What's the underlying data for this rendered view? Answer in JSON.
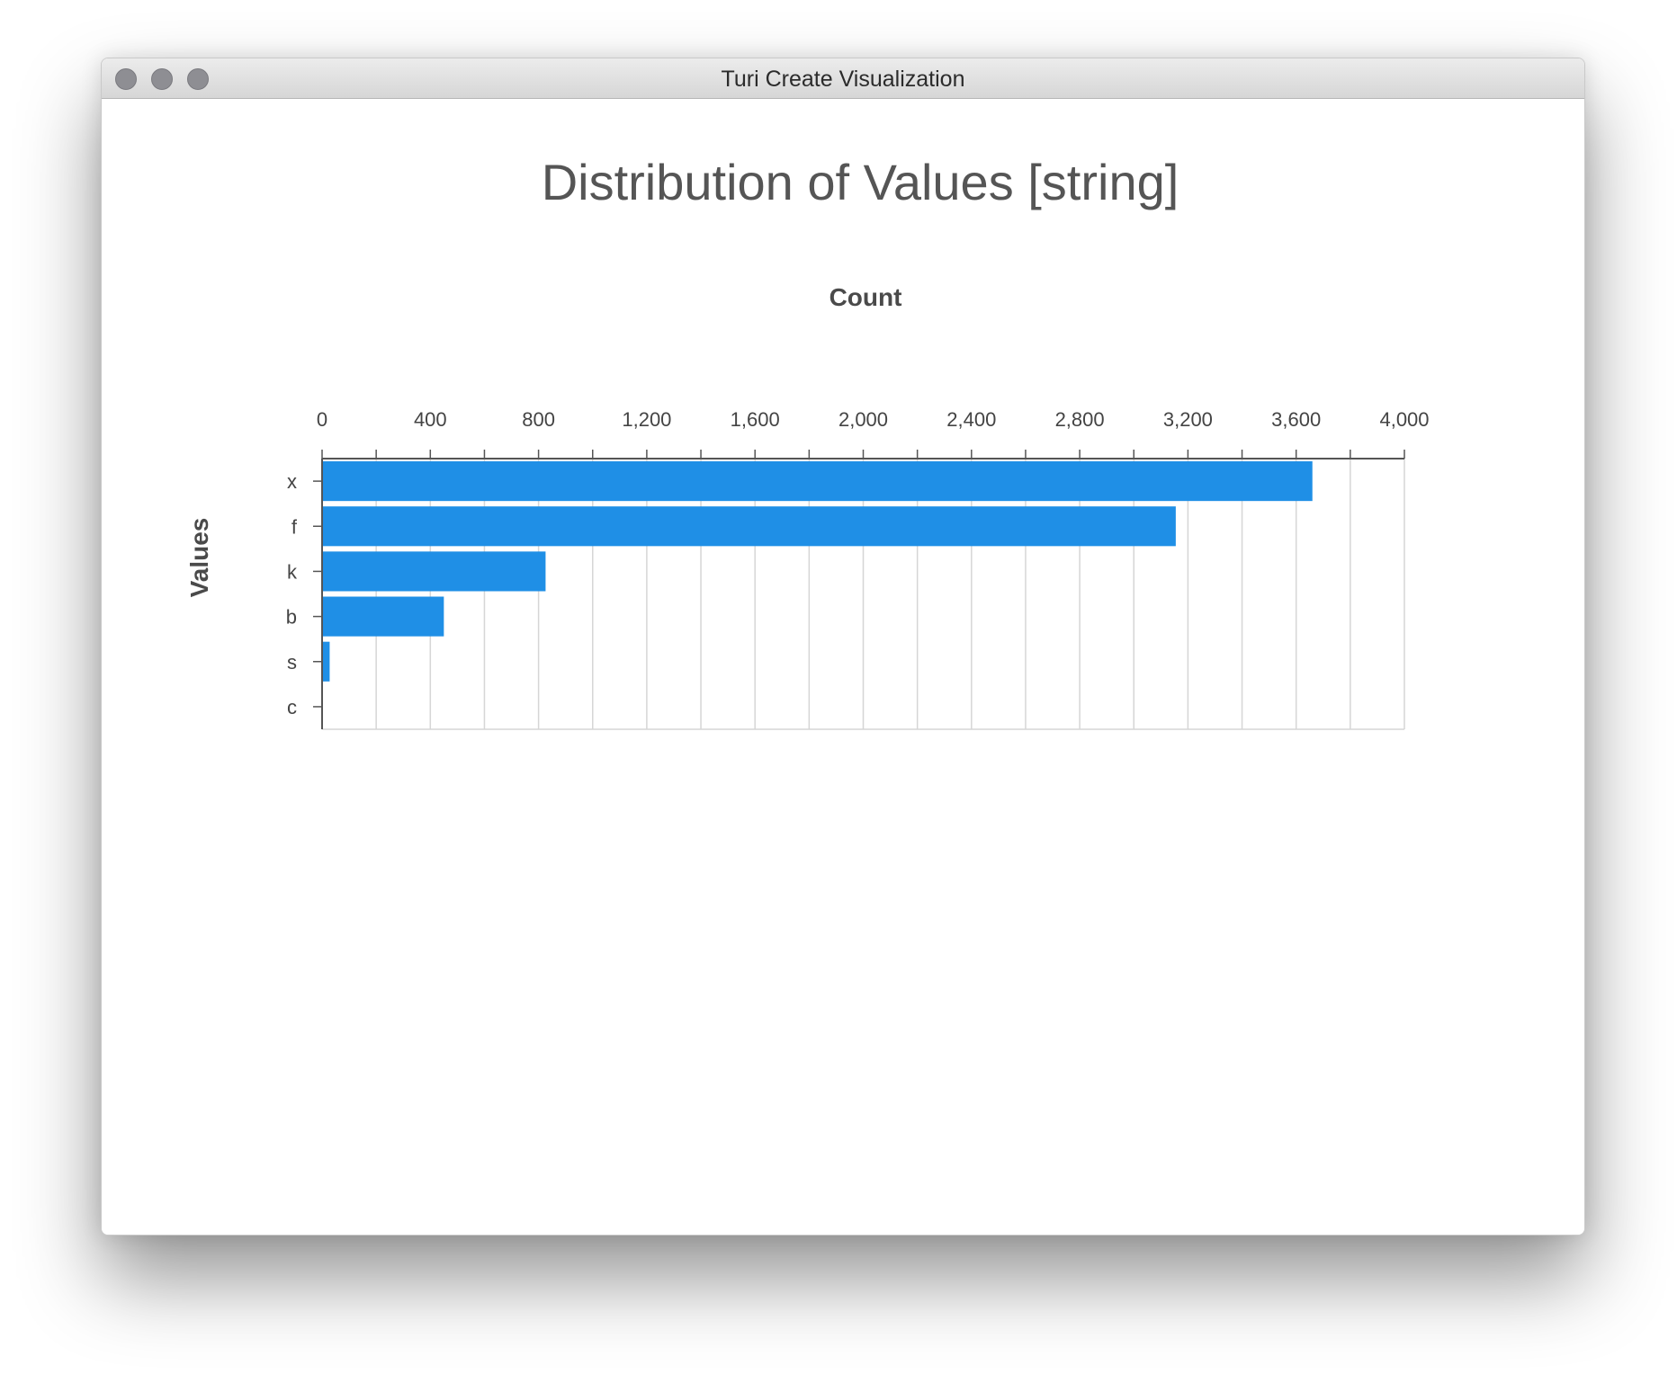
{
  "window": {
    "title": "Turi Create Visualization"
  },
  "chart_data": {
    "type": "bar",
    "orientation": "horizontal",
    "title": "Distribution of Values [string]",
    "xlabel": "Count",
    "ylabel": "Values",
    "categories": [
      "x",
      "f",
      "k",
      "b",
      "s",
      "c"
    ],
    "values": [
      3660,
      3155,
      826,
      450,
      28,
      0
    ],
    "xlim": [
      0,
      4000
    ],
    "xticks": [
      0,
      400,
      800,
      1200,
      1600,
      2000,
      2400,
      2800,
      3200,
      3600,
      4000
    ],
    "xtick_labels": [
      "0",
      "400",
      "800",
      "1,200",
      "1,600",
      "2,000",
      "2,400",
      "2,800",
      "3,200",
      "3,600",
      "4,000"
    ],
    "x_axis_position": "top",
    "grid": true,
    "legend": "none",
    "bar_color": "#1f8fe6"
  }
}
